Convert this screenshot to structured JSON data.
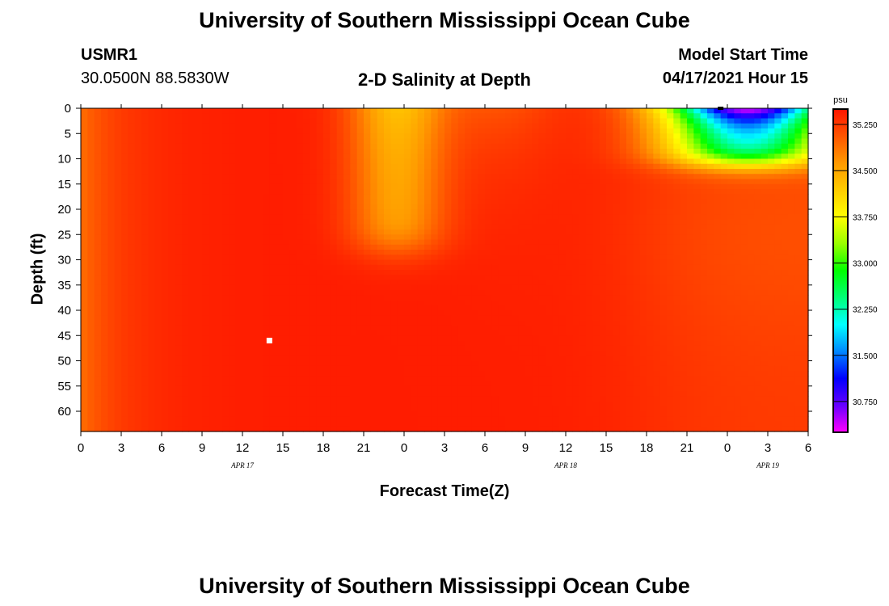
{
  "page_title_top": "University of Southern Mississippi Ocean Cube",
  "page_title_bottom": "University of Southern Mississippi Ocean Cube",
  "station": {
    "id": "USMR1",
    "coords": "30.0500N  88.5830W"
  },
  "model": {
    "label": "Model Start Time",
    "start": "04/17/2021 Hour 15"
  },
  "chart_data": {
    "type": "heatmap",
    "title": "2-D Salinity at Depth",
    "xlabel": "Forecast Time(Z)",
    "ylabel": "Depth (ft)",
    "x_ticks": [
      "0",
      "3",
      "6",
      "9",
      "12",
      "15",
      "18",
      "21",
      "0",
      "3",
      "6",
      "9",
      "12",
      "15",
      "18",
      "21",
      "0",
      "3",
      "6"
    ],
    "x_range_hours": [
      0,
      54
    ],
    "date_labels": [
      {
        "text": "APR 17",
        "hour": 12
      },
      {
        "text": "APR 18",
        "hour": 36
      },
      {
        "text": "APR 19",
        "hour": 51
      }
    ],
    "y_ticks": [
      0,
      5,
      10,
      15,
      20,
      25,
      30,
      35,
      40,
      45,
      50,
      55,
      60
    ],
    "ylim": [
      0,
      64
    ],
    "colorbar": {
      "unit": "psu",
      "range": [
        30.25,
        35.5
      ],
      "tick_values": [
        35.25,
        34.5,
        33.75,
        33.0,
        32.25,
        31.5,
        30.75
      ],
      "tick_labels": [
        "35.250",
        "34.500",
        "33.750",
        "33.000",
        "32.250",
        "31.500",
        "30.750"
      ],
      "colors": [
        "#ff00ff",
        "#6600ff",
        "#0000ff",
        "#0088ff",
        "#00ffff",
        "#00ff77",
        "#00ff00",
        "#99ff00",
        "#ffff00",
        "#ffcc00",
        "#ff9900",
        "#ff5500",
        "#ff1500"
      ]
    },
    "salinity_features": [
      {
        "desc": "fresher lens near surface",
        "hours": [
          19.5,
          29
        ],
        "depth_ft": [
          0,
          31
        ],
        "min_psu": 34.2
      },
      {
        "desc": "strong freshwater plume at surface",
        "hours": [
          41,
          54
        ],
        "depth_ft": [
          0,
          15
        ],
        "min_psu": 30.3
      }
    ],
    "markers": [
      {
        "hour": 14,
        "depth_ft": 46,
        "color": "#ffffff"
      },
      {
        "hour": 47.5,
        "depth_ft": 0,
        "color": "#000000"
      }
    ]
  }
}
